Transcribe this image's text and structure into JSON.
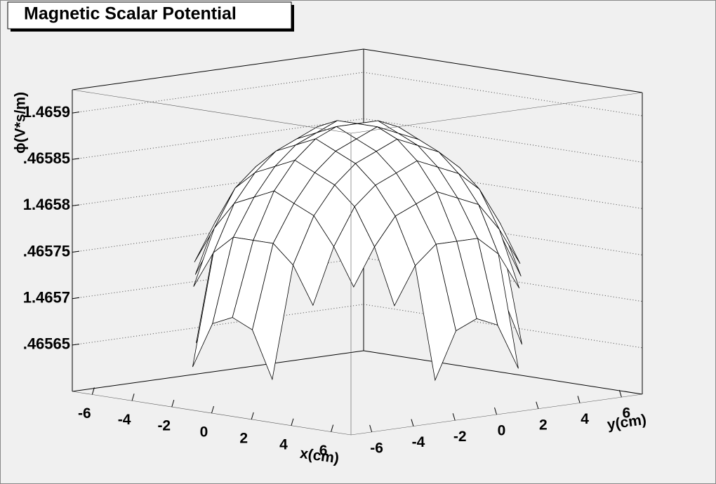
{
  "chart_data": {
    "type": "surface",
    "title": "Magnetic Scalar Potential",
    "x_title": "x(cm)",
    "y_title": "y(cm)",
    "z_title": "ϕ(V*s/m)",
    "x": [
      -6,
      -5,
      -4,
      -3,
      -2,
      -1,
      0,
      1,
      2,
      3,
      4,
      5,
      6
    ],
    "y": [
      -6,
      -5,
      -4,
      -3,
      -2,
      -1,
      0,
      1,
      2,
      3,
      4,
      5,
      6
    ],
    "z": [
      [
        null,
        null,
        null,
        null,
        1.46564,
        1.46569,
        1.4657,
        1.46569,
        1.46564,
        null,
        null,
        null,
        null
      ],
      [
        null,
        null,
        null,
        1.46572,
        1.46576,
        1.46578,
        1.46578,
        1.46578,
        1.46576,
        1.46572,
        null,
        null,
        null
      ],
      [
        null,
        null,
        1.46574,
        1.46578,
        1.46581,
        1.46582,
        1.46583,
        1.46582,
        1.46581,
        1.46578,
        1.46574,
        null,
        null
      ],
      [
        null,
        1.46572,
        1.46578,
        1.46582,
        1.46584,
        1.46585,
        1.46586,
        1.46585,
        1.46584,
        1.46582,
        1.46578,
        1.46572,
        null
      ],
      [
        1.46564,
        1.46576,
        1.46581,
        1.46584,
        1.46586,
        1.46587,
        1.46588,
        1.46587,
        1.46586,
        1.46584,
        1.46581,
        1.46576,
        1.46564
      ],
      [
        1.46569,
        1.46578,
        1.46582,
        1.46585,
        1.46587,
        1.46588,
        1.46589,
        1.46588,
        1.46587,
        1.46585,
        1.46582,
        1.46578,
        1.46569
      ],
      [
        1.4657,
        1.46578,
        1.46583,
        1.46586,
        1.46588,
        1.46589,
        1.46589,
        1.46589,
        1.46588,
        1.46586,
        1.46583,
        1.46578,
        1.4657
      ],
      [
        1.46569,
        1.46578,
        1.46582,
        1.46585,
        1.46587,
        1.46588,
        1.46589,
        1.46588,
        1.46587,
        1.46585,
        1.46582,
        1.46578,
        1.46569
      ],
      [
        1.46564,
        1.46576,
        1.46581,
        1.46584,
        1.46586,
        1.46587,
        1.46588,
        1.46587,
        1.46586,
        1.46584,
        1.46581,
        1.46576,
        1.46564
      ],
      [
        null,
        1.46572,
        1.46578,
        1.46582,
        1.46584,
        1.46585,
        1.46586,
        1.46585,
        1.46584,
        1.46582,
        1.46578,
        1.46572,
        null
      ],
      [
        null,
        null,
        1.46574,
        1.46578,
        1.46581,
        1.46582,
        1.46583,
        1.46582,
        1.46581,
        1.46578,
        1.46574,
        null,
        null
      ],
      [
        null,
        null,
        null,
        1.46572,
        1.46576,
        1.46578,
        1.46578,
        1.46578,
        1.46576,
        1.46572,
        null,
        null,
        null
      ],
      [
        null,
        null,
        null,
        null,
        1.46564,
        1.46569,
        1.4657,
        1.46569,
        1.46564,
        null,
        null,
        null,
        null
      ]
    ],
    "xlim": [
      -7,
      7
    ],
    "ylim": [
      -7,
      7
    ],
    "zlim": [
      1.4656,
      1.465925
    ],
    "xticks": [
      -6,
      -4,
      -2,
      0,
      2,
      4,
      6
    ],
    "yticks": [
      -6,
      -4,
      -2,
      0,
      2,
      4,
      6
    ],
    "zticks": [
      {
        "value": 1.46565,
        "label": ".46565"
      },
      1.4657,
      {
        "value": 1.46575,
        "label": ".46575"
      },
      1.4658,
      {
        "value": 1.46585,
        "label": ".46585"
      },
      1.4659
    ],
    "grid": true,
    "color": "#000000"
  }
}
